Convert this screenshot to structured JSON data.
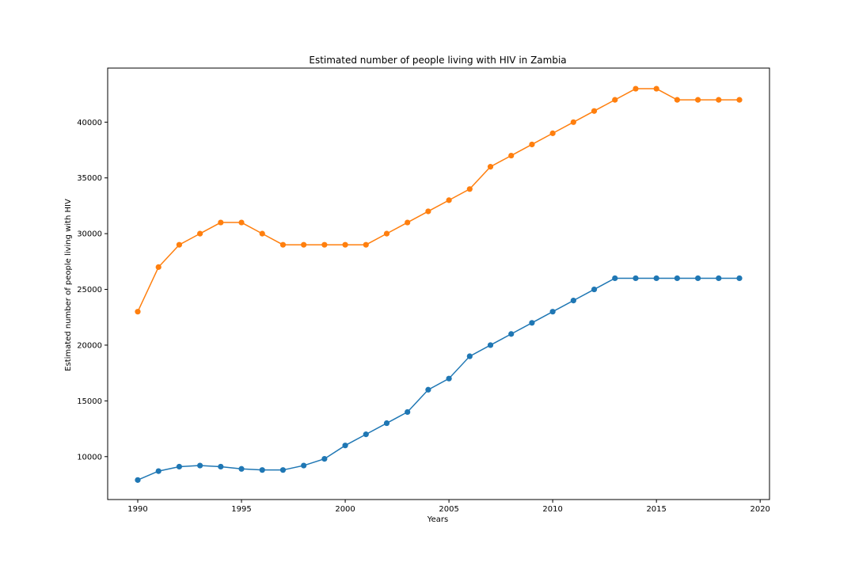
{
  "chart_data": {
    "type": "line",
    "title": "Estimated number of people living with HIV in Zambia",
    "xlabel": "Years",
    "ylabel": "Estimated number of people living with HIV",
    "x": [
      1990,
      1991,
      1992,
      1993,
      1994,
      1995,
      1996,
      1997,
      1998,
      1999,
      2000,
      2001,
      2002,
      2003,
      2004,
      2005,
      2006,
      2007,
      2008,
      2009,
      2010,
      2011,
      2012,
      2013,
      2014,
      2015,
      2016,
      2017,
      2018,
      2019
    ],
    "series": [
      {
        "color": "#1f77b4",
        "values": [
          7900,
          8700,
          9100,
          9200,
          9100,
          8900,
          8800,
          8800,
          9200,
          9800,
          11000,
          12000,
          13000,
          14000,
          16000,
          17000,
          19000,
          20000,
          21000,
          22000,
          23000,
          24000,
          25000,
          26000,
          26000,
          26000,
          26000,
          26000,
          26000,
          26000
        ]
      },
      {
        "color": "#ff7f0e",
        "values": [
          23000,
          27000,
          29000,
          30000,
          31000,
          31000,
          30000,
          29000,
          29000,
          29000,
          29000,
          29000,
          30000,
          31000,
          32000,
          33000,
          34000,
          36000,
          37000,
          38000,
          39000,
          40000,
          41000,
          42000,
          43000,
          43000,
          42000,
          42000,
          42000,
          42000
        ]
      }
    ],
    "xlim": [
      1988.55,
      2020.45
    ],
    "ylim": [
      6150,
      44850
    ],
    "xticks": [
      "1990",
      "1995",
      "2000",
      "2005",
      "2010",
      "2015",
      "2020"
    ],
    "yticks": [
      "10000",
      "15000",
      "20000",
      "25000",
      "30000",
      "35000",
      "40000"
    ],
    "grid": false,
    "legend": "none"
  }
}
